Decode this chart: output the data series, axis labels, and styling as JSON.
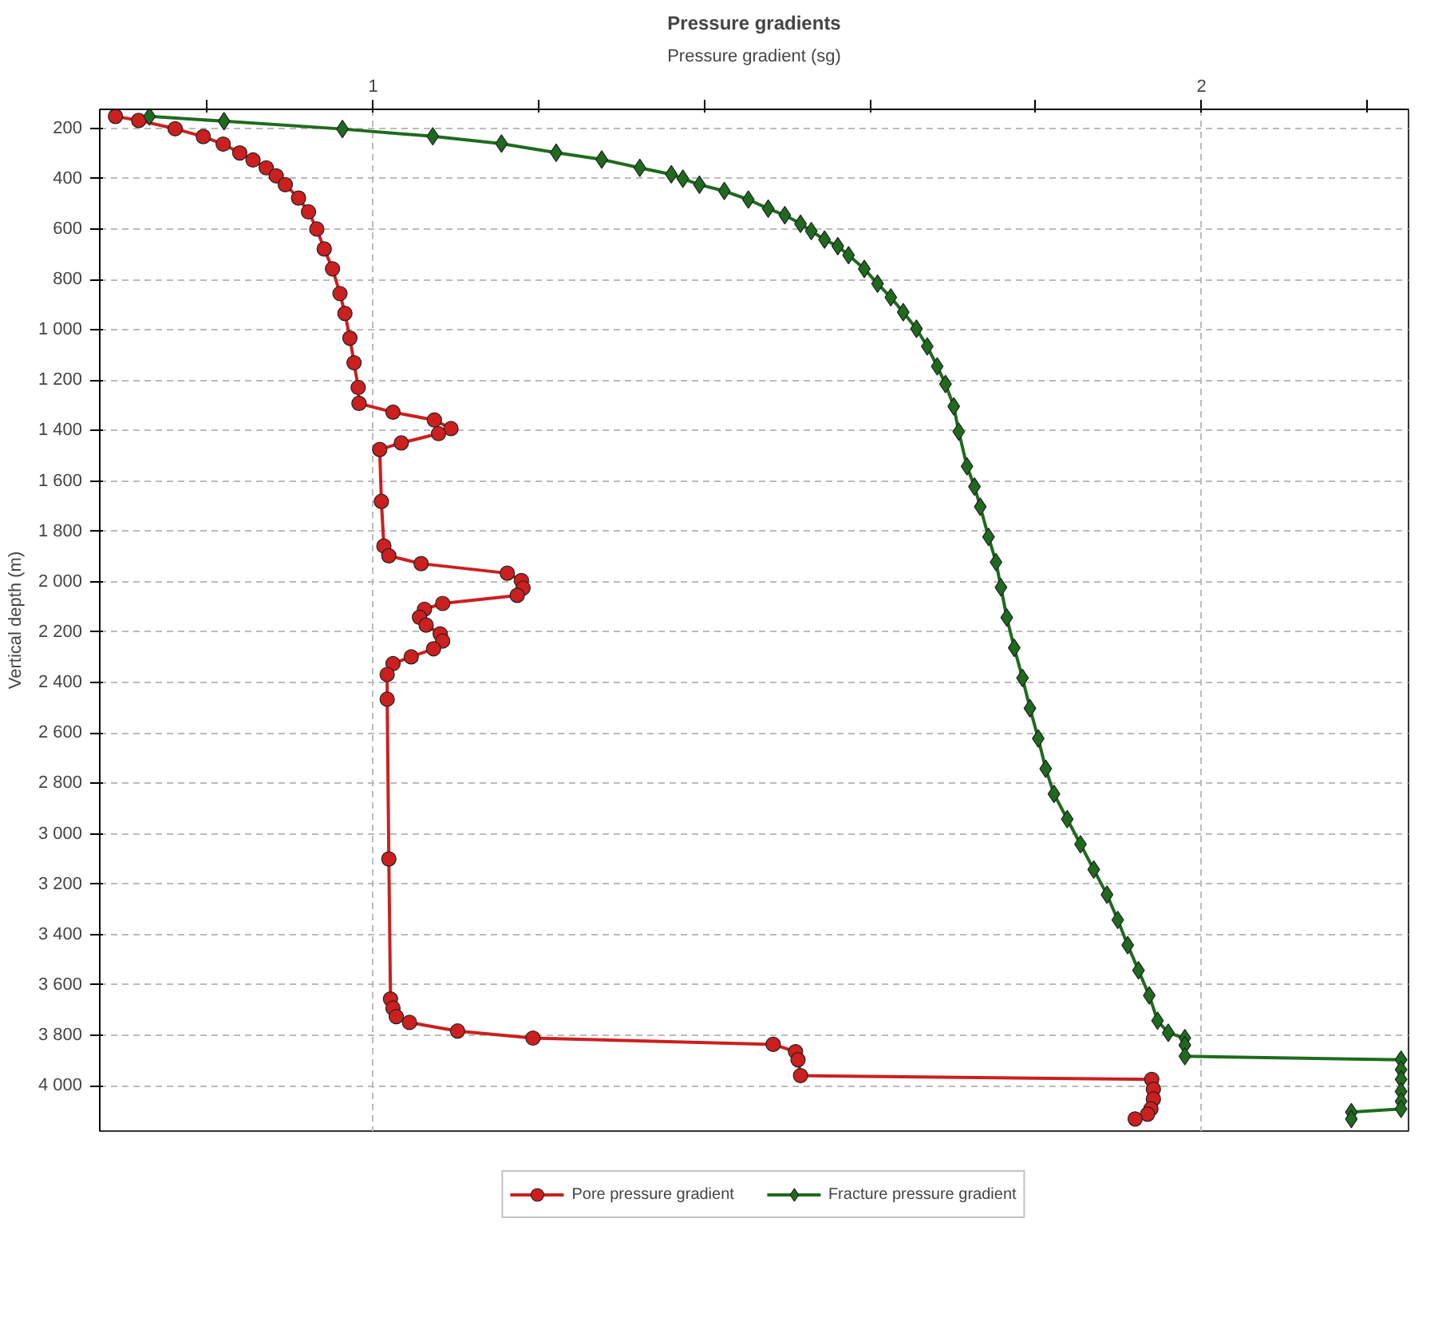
{
  "chart_data": {
    "type": "line",
    "title": "Pressure gradients",
    "xlabel": "Pressure gradient (sg)",
    "ylabel": "Vertical depth (m)",
    "xlim": [
      0.67,
      2.25
    ],
    "ylim": [
      4180,
      125
    ],
    "xticks": [
      {
        "value": 0.8,
        "label": null
      },
      1,
      {
        "value": 1.2,
        "label": null
      },
      {
        "value": 1.4,
        "label": null
      },
      {
        "value": 1.6,
        "label": null
      },
      {
        "value": 1.8,
        "label": null
      },
      2,
      {
        "value": 2.2,
        "label": null
      }
    ],
    "yticks": [
      200,
      400,
      600,
      800,
      {
        "value": 1000,
        "label": "1 000"
      },
      {
        "value": 1200,
        "label": "1 200"
      },
      {
        "value": 1400,
        "label": "1 400"
      },
      {
        "value": 1600,
        "label": "1 600"
      },
      {
        "value": 1800,
        "label": "1 800"
      },
      {
        "value": 2000,
        "label": "2 000"
      },
      {
        "value": 2200,
        "label": "2 200"
      },
      {
        "value": 2400,
        "label": "2 400"
      },
      {
        "value": 2600,
        "label": "2 600"
      },
      {
        "value": 2800,
        "label": "2 800"
      },
      {
        "value": 3000,
        "label": "3 000"
      },
      {
        "value": 3200,
        "label": "3 200"
      },
      {
        "value": 3400,
        "label": "3 400"
      },
      {
        "value": 3600,
        "label": "3 600"
      },
      {
        "value": 3800,
        "label": "3 800"
      },
      {
        "value": 4000,
        "label": "4 000"
      }
    ],
    "grid": true,
    "legend": "bottom",
    "line_style": "solid",
    "series": [
      {
        "name": "Pore pressure gradient",
        "color": "#cc1f1f",
        "marker": "circle",
        "x": [
          0.689,
          0.717,
          0.761,
          0.795,
          0.819,
          0.839,
          0.855,
          0.871,
          0.883,
          0.894,
          0.91,
          0.922,
          0.932,
          0.941,
          0.951,
          0.96,
          0.966,
          0.972,
          0.977,
          0.982,
          0.983,
          1.024,
          1.074,
          1.094,
          1.079,
          1.034,
          1.008,
          1.01,
          1.013,
          1.019,
          1.058,
          1.162,
          1.179,
          1.181,
          1.174,
          1.084,
          1.062,
          1.056,
          1.064,
          1.081,
          1.084,
          1.073,
          1.046,
          1.024,
          1.017,
          1.017,
          1.019,
          1.021,
          1.024,
          1.028,
          1.044,
          1.102,
          1.193,
          1.483,
          1.51,
          1.513,
          1.516,
          1.94,
          1.942,
          1.942,
          1.939,
          1.935,
          1.92
        ],
        "values": [
          153,
          169,
          202,
          233,
          263,
          298,
          326,
          357,
          389,
          424,
          477,
          532,
          600,
          679,
          758,
          856,
          935,
          1033,
          1131,
          1229,
          1292,
          1327,
          1358,
          1392,
          1412,
          1449,
          1475,
          1681,
          1858,
          1897,
          1928,
          1966,
          1995,
          2025,
          2054,
          2086,
          2109,
          2141,
          2172,
          2207,
          2235,
          2266,
          2298,
          2325,
          2368,
          2466,
          3100,
          3656,
          3692,
          3726,
          3749,
          3783,
          3811,
          3836,
          3865,
          3897,
          3960,
          3975,
          4014,
          4053,
          4092,
          4113,
          4132
        ]
      },
      {
        "name": "Fracture pressure gradient",
        "color": "#1e6b1e",
        "marker": "diamond",
        "x": [
          0.73,
          0.82,
          0.963,
          1.072,
          1.155,
          1.221,
          1.276,
          1.322,
          1.36,
          1.374,
          1.394,
          1.424,
          1.453,
          1.477,
          1.497,
          1.516,
          1.529,
          1.545,
          1.561,
          1.574,
          1.593,
          1.609,
          1.625,
          1.64,
          1.656,
          1.669,
          1.681,
          1.691,
          1.701,
          1.707,
          1.717,
          1.726,
          1.733,
          1.743,
          1.752,
          1.758,
          1.765,
          1.774,
          1.784,
          1.793,
          1.803,
          1.812,
          1.822,
          1.838,
          1.854,
          1.87,
          1.886,
          1.899,
          1.911,
          1.924,
          1.937,
          1.947,
          1.96,
          1.98,
          1.98,
          1.98,
          2.241,
          2.241,
          2.241,
          2.241,
          2.241,
          2.241,
          2.181,
          2.181
        ],
        "values": [
          153,
          172,
          203,
          232,
          261,
          297,
          324,
          357,
          383,
          400,
          424,
          449,
          483,
          519,
          545,
          579,
          608,
          642,
          668,
          704,
          758,
          817,
          871,
          930,
          996,
          1066,
          1145,
          1215,
          1304,
          1404,
          1542,
          1622,
          1702,
          1822,
          1922,
          2022,
          2142,
          2262,
          2382,
          2502,
          2622,
          2742,
          2842,
          2942,
          3042,
          3142,
          3242,
          3342,
          3442,
          3542,
          3642,
          3742,
          3790,
          3811,
          3839,
          3883,
          3897,
          3936,
          3975,
          4023,
          4062,
          4092,
          4105,
          4132
        ]
      }
    ]
  }
}
